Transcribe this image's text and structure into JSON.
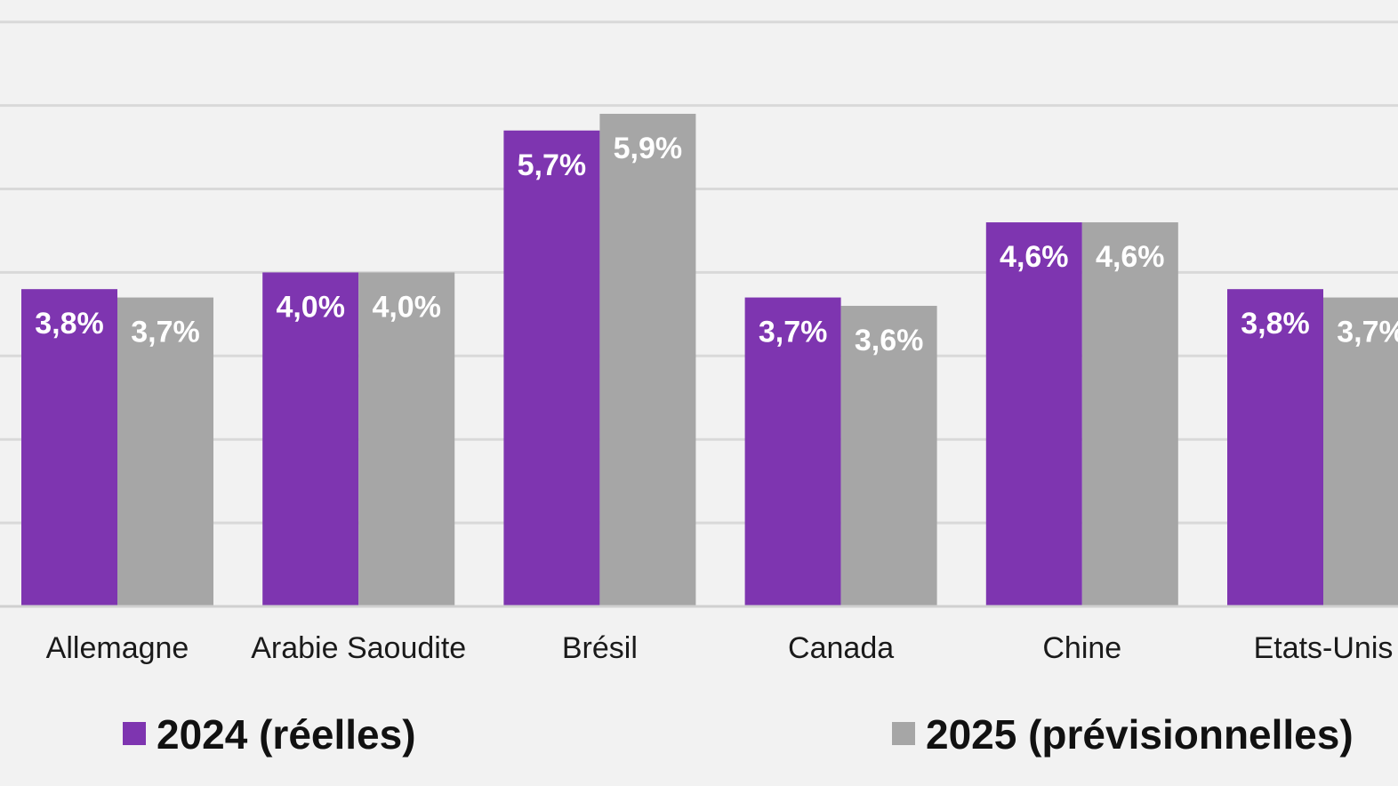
{
  "chart_data": {
    "type": "bar",
    "categories": [
      "Allemagne",
      "Arabie Saoudite",
      "Brésil",
      "Canada",
      "Chine",
      "Etats-Unis"
    ],
    "series": [
      {
        "name": "2024 (réelles)",
        "color": "#7e35b0",
        "values": [
          3.8,
          4.0,
          5.7,
          3.7,
          4.6,
          3.8
        ],
        "labels": [
          "3,8%",
          "4,0%",
          "5,7%",
          "3,7%",
          "4,6%",
          "3,8%"
        ]
      },
      {
        "name": "2025 (prévisionnelles)",
        "color": "#a6a6a6",
        "values": [
          3.7,
          4.0,
          5.9,
          3.6,
          4.6,
          3.7
        ],
        "labels": [
          "3,7%",
          "4,0%",
          "5,9%",
          "3,6%",
          "4,6%",
          "3,7%"
        ]
      }
    ],
    "ylim": [
      0,
      7
    ],
    "grid": true,
    "legend": "bottom"
  }
}
